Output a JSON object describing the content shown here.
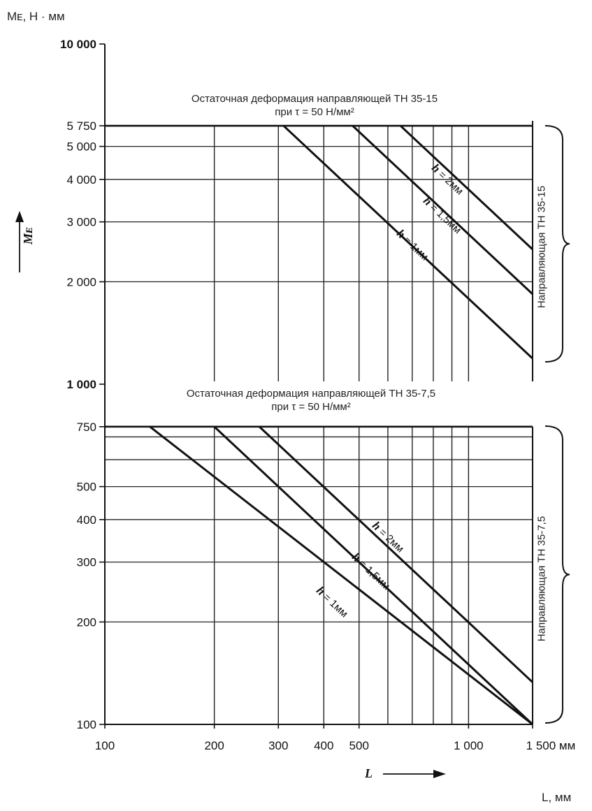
{
  "ylabel_unit": "Mᴇ, Н · мм",
  "xlabel_unit_bottom": "L, мм",
  "chart_data": {
    "type": "line",
    "x_scale": "log",
    "y_scale": "log",
    "xlim": [
      100,
      1500
    ],
    "ylim": [
      100,
      10000
    ],
    "ylabel": "Mᴇ",
    "xlabel": "L",
    "x_ticks": [
      {
        "value": 100,
        "label": "100"
      },
      {
        "value": 200,
        "label": "200"
      },
      {
        "value": 300,
        "label": "300"
      },
      {
        "value": 400,
        "label": "400"
      },
      {
        "value": 500,
        "label": "500"
      },
      {
        "value": 1000,
        "label": "1 000"
      },
      {
        "value": 1500,
        "label": "1 500 мм"
      }
    ],
    "y_ticks": [
      {
        "value": 100,
        "label": "100"
      },
      {
        "value": 200,
        "label": "200"
      },
      {
        "value": 300,
        "label": "300"
      },
      {
        "value": 400,
        "label": "400"
      },
      {
        "value": 500,
        "label": "500"
      },
      {
        "value": 750,
        "label": "750"
      },
      {
        "value": 1000,
        "label": "1 000"
      },
      {
        "value": 2000,
        "label": "2 000"
      },
      {
        "value": 3000,
        "label": "3 000"
      },
      {
        "value": 4000,
        "label": "4 000"
      },
      {
        "value": 5000,
        "label": "5 000"
      },
      {
        "value": 5750,
        "label": "5 750"
      },
      {
        "value": 10000,
        "label": "10 000"
      }
    ],
    "grid_x": [
      200,
      300,
      400,
      500,
      600,
      700,
      800,
      900,
      1000
    ],
    "grid_y_lower": [
      100,
      200,
      300,
      400,
      500,
      600,
      700
    ],
    "grid_y_upper": [
      2000,
      3000,
      4000,
      5000
    ],
    "grid_x_upper": [
      200,
      300,
      400,
      500,
      600,
      700,
      800,
      900,
      1000
    ],
    "grid": true,
    "limit_lines": [
      {
        "value": 5750,
        "label": "Остаточная деформация направляющей ТН 35-15",
        "sublabel": "при τ = 50 Н/мм²"
      },
      {
        "value": 750,
        "label": "Остаточная деформация направляющей ТН 35-7,5",
        "sublabel": "при τ = 50 Н/мм²"
      }
    ],
    "groups": [
      {
        "name": "Направляющая ТН 35-15",
        "series": [
          {
            "name": "h = 1мм",
            "x": [
              310,
              1500
            ],
            "y": [
              5750,
              1190
            ]
          },
          {
            "name": "h = 1,5мм",
            "x": [
              480,
              1500
            ],
            "y": [
              5750,
              1840
            ]
          },
          {
            "name": "h = 2мм",
            "x": [
              650,
              1500
            ],
            "y": [
              5750,
              2490
            ]
          }
        ]
      },
      {
        "name": "Направляющая ТН 35-7,5",
        "series": [
          {
            "name": "h = 1мм",
            "x": [
              133,
              1500
            ],
            "y": [
              750,
              100
            ]
          },
          {
            "name": "h = 1,5мм",
            "x": [
              200,
              1500
            ],
            "y": [
              750,
              100
            ]
          },
          {
            "name": "h = 2мм",
            "x": [
              266,
              1500
            ],
            "y": [
              750,
              133
            ]
          }
        ]
      }
    ]
  }
}
